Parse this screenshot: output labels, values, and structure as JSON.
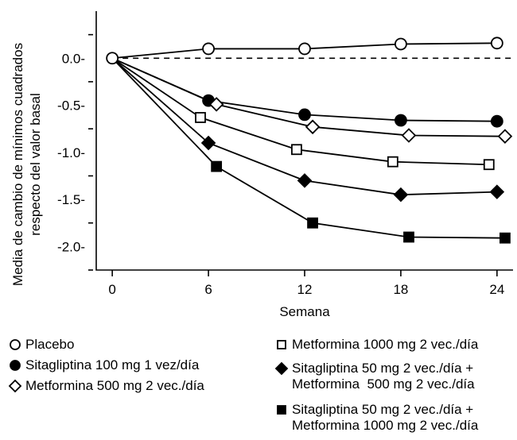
{
  "chart_data": {
    "type": "line",
    "title": "",
    "xlabel": "Semana",
    "ylabel_lines": [
      "Media de cambio de mínimos cuadrados",
      "respecto del valor basal"
    ],
    "x_ticks": [
      0,
      6,
      12,
      18,
      24
    ],
    "y_ticks": [
      0.0,
      -0.5,
      -1.0,
      -1.5,
      -2.0
    ],
    "y_tick_labels": [
      "0.0-",
      "-0.5-",
      "-1.0-",
      "-1.5-",
      "-2.0-"
    ],
    "xlim": [
      -1,
      25
    ],
    "ylim": [
      -2.25,
      0.5
    ],
    "reference_line_y": 0.0,
    "series": [
      {
        "name": "Placebo",
        "marker": "open-circle",
        "x": [
          0,
          6,
          12,
          18,
          24
        ],
        "y": [
          0.0,
          0.1,
          0.1,
          0.15,
          0.16
        ]
      },
      {
        "name": "Sitagliptina 100 mg 1 vez/día",
        "marker": "filled-circle",
        "x": [
          0,
          6,
          12,
          18,
          24
        ],
        "y": [
          0.0,
          -0.45,
          -0.6,
          -0.66,
          -0.67
        ]
      },
      {
        "name": "Metformina 500 mg 2 vec./día",
        "marker": "open-diamond",
        "x": [
          0,
          6.5,
          12.5,
          18.5,
          24.5
        ],
        "y": [
          0.0,
          -0.49,
          -0.73,
          -0.82,
          -0.83
        ]
      },
      {
        "name": "Metformina 1000 mg 2 vec./día",
        "marker": "open-square",
        "x": [
          0,
          5.5,
          11.5,
          17.5,
          23.5
        ],
        "y": [
          0.0,
          -0.63,
          -0.97,
          -1.1,
          -1.13
        ]
      },
      {
        "name": "Sitagliptina 50 mg 2 vec./día +\nMetformina  500 mg 2 vec./día",
        "marker": "filled-diamond",
        "x": [
          0,
          6,
          12,
          18,
          24
        ],
        "y": [
          0.0,
          -0.9,
          -1.3,
          -1.45,
          -1.42
        ]
      },
      {
        "name": "Sitagliptina 50 mg 2 vec./día +\nMetformina 1000 mg 2 vec./día",
        "marker": "filled-square",
        "x": [
          0,
          6.5,
          12.5,
          18.5,
          24.5
        ],
        "y": [
          0.0,
          -1.15,
          -1.75,
          -1.9,
          -1.91
        ]
      }
    ]
  }
}
